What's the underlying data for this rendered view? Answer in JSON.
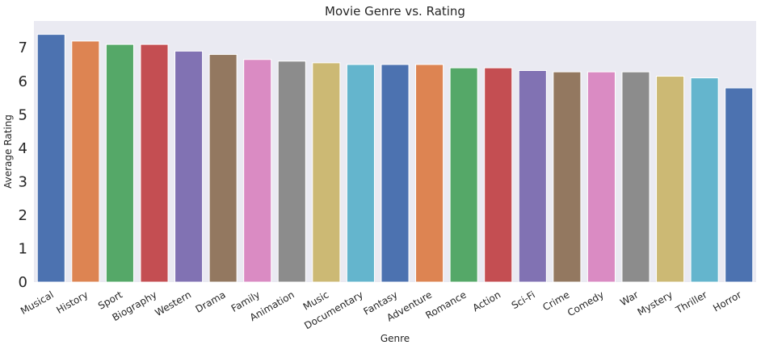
{
  "chart_data": {
    "type": "bar",
    "title": "Movie Genre vs. Rating",
    "xlabel": "Genre",
    "ylabel": "Average Rating",
    "ylim": [
      0,
      7.8
    ],
    "yticks": [
      0,
      1,
      2,
      3,
      4,
      5,
      6,
      7
    ],
    "grid": false,
    "background": "#eaeaf2",
    "categories": [
      "Musical",
      "History",
      "Sport",
      "Biography",
      "Western",
      "Drama",
      "Family",
      "Animation",
      "Music",
      "Documentary",
      "Fantasy",
      "Adventure",
      "Romance",
      "Action",
      "Sci-Fi",
      "Crime",
      "Comedy",
      "War",
      "Mystery",
      "Thriller",
      "Horror"
    ],
    "values": [
      7.4,
      7.2,
      7.1,
      7.1,
      6.9,
      6.8,
      6.65,
      6.6,
      6.55,
      6.5,
      6.5,
      6.5,
      6.4,
      6.4,
      6.32,
      6.28,
      6.28,
      6.28,
      6.15,
      6.1,
      5.8
    ],
    "colors": [
      "#4c72b0",
      "#dd8452",
      "#55a868",
      "#c44e52",
      "#8172b3",
      "#937860",
      "#da8bc3",
      "#8c8c8c",
      "#ccb974",
      "#64b5cd",
      "#4c72b0",
      "#dd8452",
      "#55a868",
      "#c44e52",
      "#8172b3",
      "#937860",
      "#da8bc3",
      "#8c8c8c",
      "#ccb974",
      "#64b5cd",
      "#4c72b0"
    ]
  }
}
